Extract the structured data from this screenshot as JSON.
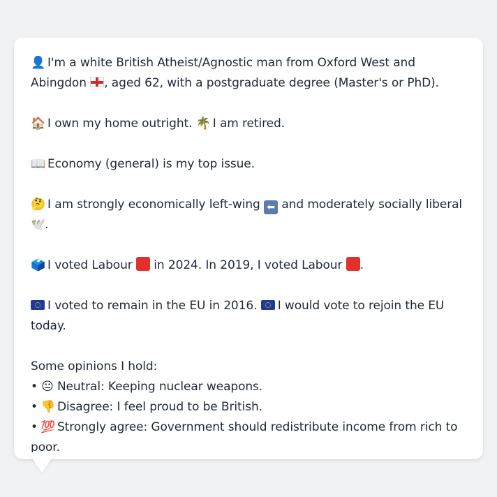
{
  "message": {
    "intro_pre": "I'm a white British Atheist/Agnostic man from Oxford West and Abingdon",
    "intro_post": ", aged 62, with a postgraduate degree (Master's or PhD).",
    "home": "I own my home outright.",
    "retired": "I am retired.",
    "top_issue": "Economy (general) is my top issue.",
    "politics_pre": "I am strongly economically left-wing",
    "politics_mid": "and moderately socially liberal",
    "politics_end": ".",
    "vote_pre": "I voted Labour",
    "vote_mid": "in 2024. In 2019, I voted Labour",
    "vote_end": ".",
    "eu_remain": "I voted to remain in the EU in 2016.",
    "eu_rejoin": "I would vote to rejoin the EU today.",
    "opinions_heading": "Some opinions I hold:",
    "opinions": [
      {
        "bullet": "•",
        "icon": "neutral-face-icon",
        "glyph": "😐",
        "text": "Neutral: Keeping nuclear weapons."
      },
      {
        "bullet": "•",
        "icon": "thumbs-down-icon",
        "glyph": "👎",
        "text": "Disagree: I feel proud to be British."
      },
      {
        "bullet": "•",
        "icon": "hundred-points-icon",
        "glyph": "💯",
        "text": "Strongly agree: Government should redistribute income from rich to poor."
      }
    ]
  },
  "icons": {
    "person": "👤",
    "house": "🏠",
    "palm": "🌴",
    "book": "📖",
    "thinking": "🤔",
    "dove": "🕊️",
    "ballot": "🗳️"
  },
  "colors": {
    "background": "#f1f2f4",
    "bubble": "#ffffff",
    "text": "#1f2937",
    "labour_red": "#e3302c",
    "eu_blue": "#1f3b99"
  }
}
